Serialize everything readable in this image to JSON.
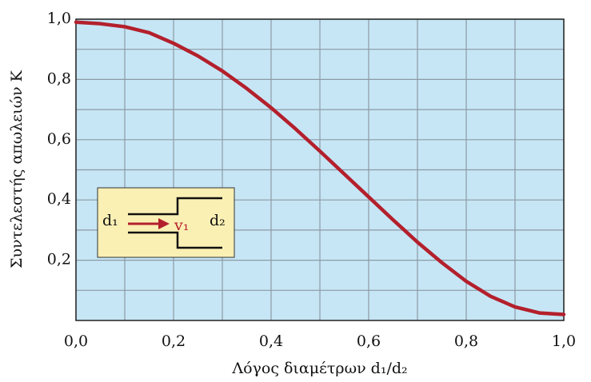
{
  "chart_data": {
    "type": "line",
    "xlabel": "Λόγος διαμέτρων d₁/d₂",
    "ylabel": "Συντελεστής απωλειών K",
    "x": [
      0,
      0.05,
      0.1,
      0.15,
      0.2,
      0.25,
      0.3,
      0.35,
      0.4,
      0.45,
      0.5,
      0.55,
      0.6,
      0.65,
      0.7,
      0.75,
      0.8,
      0.85,
      0.9,
      0.95,
      1.0
    ],
    "series": [
      {
        "color": "#b3202c",
        "values": [
          0.99,
          0.985,
          0.975,
          0.955,
          0.92,
          0.878,
          0.828,
          0.77,
          0.706,
          0.636,
          0.562,
          0.486,
          0.41,
          0.334,
          0.26,
          0.192,
          0.13,
          0.08,
          0.045,
          0.025,
          0.02
        ]
      }
    ],
    "xlim": [
      0,
      1.0
    ],
    "ylim": [
      0,
      1.0
    ],
    "xticks": [
      {
        "value": 0,
        "label": "0,0"
      },
      {
        "value": 0.2,
        "label": "0,2"
      },
      {
        "value": 0.4,
        "label": "0,4"
      },
      {
        "value": 0.6,
        "label": "0,6"
      },
      {
        "value": 0.8,
        "label": "0,8"
      },
      {
        "value": 1.0,
        "label": "1,0"
      }
    ],
    "yticks": [
      {
        "value": 0.2,
        "label": "0,2"
      },
      {
        "value": 0.4,
        "label": "0,4"
      },
      {
        "value": 0.6,
        "label": "0,6"
      },
      {
        "value": 0.8,
        "label": "0,8"
      },
      {
        "value": 1.0,
        "label": "1,0"
      }
    ],
    "xminorticks": [
      0.1,
      0.3,
      0.5,
      0.7,
      0.9
    ],
    "yminorticks": [
      0.1,
      0.3,
      0.5,
      0.7,
      0.9
    ],
    "grid": true,
    "inset": {
      "inlet": "d₁",
      "velocity": "v₁",
      "outlet": "d₂"
    }
  }
}
